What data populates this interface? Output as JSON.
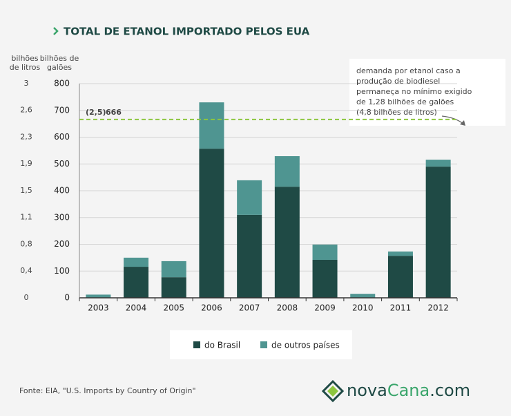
{
  "chart_data": {
    "type": "stacked-bar",
    "title": "TOTAL DE ETANOL IMPORTADO PELOS EUA",
    "y2_label": [
      "bilhões",
      "de litros"
    ],
    "y_label": [
      "bilhões de",
      "galões"
    ],
    "categories": [
      "2003",
      "2004",
      "2005",
      "2006",
      "2007",
      "2008",
      "2009",
      "2010",
      "2011",
      "2012"
    ],
    "series": [
      {
        "name": "do Brasil",
        "color": "#1f4a45",
        "values": [
          0,
          116,
          77,
          557,
          310,
          415,
          142,
          0,
          157,
          490
        ]
      },
      {
        "name": "de outros países",
        "color": "#4f9591",
        "values": [
          12,
          34,
          60,
          173,
          129,
          114,
          57,
          15,
          16,
          26
        ]
      }
    ],
    "ylim": [
      0,
      800
    ],
    "yticks": [
      0,
      100,
      200,
      300,
      400,
      500,
      600,
      700,
      800
    ],
    "y2lim": [
      0,
      3.028
    ],
    "y2ticks": [
      {
        "value": 0,
        "label": "0"
      },
      {
        "value": 0.379,
        "label": "0,4"
      },
      {
        "value": 0.757,
        "label": "0,8"
      },
      {
        "value": 1.136,
        "label": "1,1"
      },
      {
        "value": 1.514,
        "label": "1,5"
      },
      {
        "value": 1.893,
        "label": "1,9"
      },
      {
        "value": 2.271,
        "label": "2,3"
      },
      {
        "value": 2.65,
        "label": "2,6"
      },
      {
        "value": 3.028,
        "label": "3"
      }
    ],
    "reference_line": {
      "value": 666,
      "label": "666",
      "y2_label": "(2,5)",
      "color": "#8dc63f"
    },
    "annotation": [
      "demanda por etanol caso a",
      "produção de biodiesel",
      "permaneça no mínimo exigido",
      "de 1,28 bilhões de galões",
      "(4,8 bilhões de litros)"
    ],
    "grid": true,
    "source": "Fonte: EIA, \"U.S. Imports by Country of Origin\"",
    "logo": [
      "nova",
      "Cana",
      ".com"
    ]
  }
}
